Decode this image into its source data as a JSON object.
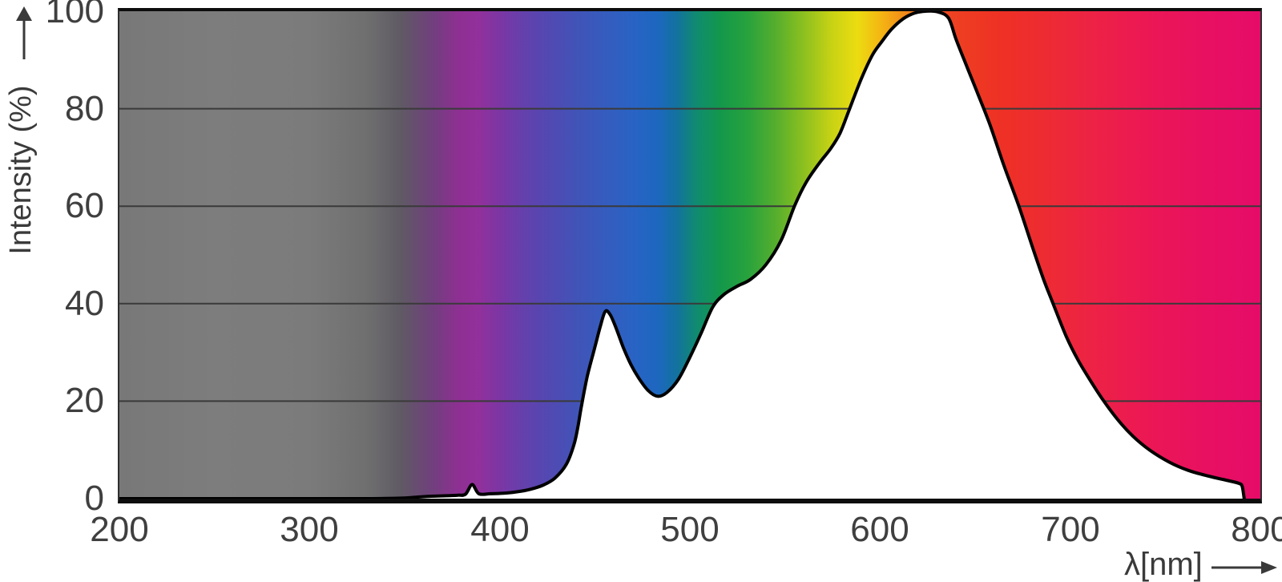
{
  "figure": {
    "description": "Spectral power distribution chart: relative intensity versus wavelength over a visible-light spectrum gradient; area below the curve is white"
  },
  "y_axis": {
    "title": "Intensity (%)",
    "ticks": [
      0,
      20,
      40,
      60,
      80,
      100
    ],
    "min": 0,
    "max": 100
  },
  "x_axis": {
    "title": "λ[nm]",
    "ticks": [
      200,
      300,
      400,
      500,
      600,
      700,
      800
    ],
    "min": 200,
    "max": 800
  },
  "styles": {
    "grid_color": "#3a3a3a",
    "curve_color": "#000000",
    "area_fill": "#ffffff",
    "label_color": "#3f3f3f",
    "axis_border_color": "#0d0d0d",
    "page_background": "#ffffff"
  },
  "spectrum_gradient": [
    {
      "nm": 200,
      "color": "#787878"
    },
    {
      "nm": 250,
      "color": "#7d7d7d"
    },
    {
      "nm": 300,
      "color": "#7b7b7b"
    },
    {
      "nm": 330,
      "color": "#6f6f6f"
    },
    {
      "nm": 348,
      "color": "#5f5a64"
    },
    {
      "nm": 365,
      "color": "#713f7e"
    },
    {
      "nm": 378,
      "color": "#8d3092"
    },
    {
      "nm": 388,
      "color": "#93309b"
    },
    {
      "nm": 400,
      "color": "#7c36a4"
    },
    {
      "nm": 412,
      "color": "#6540ac"
    },
    {
      "nm": 425,
      "color": "#5348b2"
    },
    {
      "nm": 440,
      "color": "#4253b7"
    },
    {
      "nm": 455,
      "color": "#355cbe"
    },
    {
      "nm": 470,
      "color": "#2963c4"
    },
    {
      "nm": 483,
      "color": "#1d67bf"
    },
    {
      "nm": 493,
      "color": "#13729f"
    },
    {
      "nm": 504,
      "color": "#108c6e"
    },
    {
      "nm": 516,
      "color": "#13984b"
    },
    {
      "nm": 530,
      "color": "#27a23d"
    },
    {
      "nm": 545,
      "color": "#55ae2e"
    },
    {
      "nm": 560,
      "color": "#8cc01f"
    },
    {
      "nm": 575,
      "color": "#c9d314"
    },
    {
      "nm": 588,
      "color": "#ebdc11"
    },
    {
      "nm": 600,
      "color": "#f4b713"
    },
    {
      "nm": 612,
      "color": "#f28d18"
    },
    {
      "nm": 624,
      "color": "#f0621e"
    },
    {
      "nm": 638,
      "color": "#ee4122"
    },
    {
      "nm": 662,
      "color": "#ee3124"
    },
    {
      "nm": 688,
      "color": "#ed2b33"
    },
    {
      "nm": 712,
      "color": "#ed2245"
    },
    {
      "nm": 742,
      "color": "#eb1755"
    },
    {
      "nm": 772,
      "color": "#e81061"
    },
    {
      "nm": 800,
      "color": "#e50c69"
    }
  ],
  "chart_data": {
    "type": "area",
    "title": "",
    "xlabel": "λ[nm]",
    "ylabel": "Intensity (%)",
    "xlim": [
      200,
      800
    ],
    "ylim": [
      0,
      100
    ],
    "grid": {
      "horizontal_lines_at": [
        20,
        40,
        60,
        80
      ],
      "visible_only_above_curve": true
    },
    "legend": "none",
    "series": [
      {
        "name": "relative spectral intensity",
        "points": [
          [
            200,
            0
          ],
          [
            245,
            0
          ],
          [
            290,
            0
          ],
          [
            330,
            0
          ],
          [
            348,
            0.1
          ],
          [
            356,
            0.3
          ],
          [
            364,
            0.5
          ],
          [
            372,
            0.6
          ],
          [
            378,
            0.7
          ],
          [
            382,
            0.9
          ],
          [
            385.5,
            2.9
          ],
          [
            389,
            1.0
          ],
          [
            395,
            1.0
          ],
          [
            402,
            1.1
          ],
          [
            409,
            1.4
          ],
          [
            416,
            1.9
          ],
          [
            423,
            2.8
          ],
          [
            429,
            4.2
          ],
          [
            435,
            7.0
          ],
          [
            439,
            11.0
          ],
          [
            441,
            14.5
          ],
          [
            443,
            19.0
          ],
          [
            446,
            25.0
          ],
          [
            450,
            31.0
          ],
          [
            453,
            35.5
          ],
          [
            455.5,
            38.4
          ],
          [
            458,
            37.8
          ],
          [
            461,
            35.2
          ],
          [
            465,
            31.0
          ],
          [
            469,
            27.5
          ],
          [
            473,
            24.8
          ],
          [
            478,
            22.2
          ],
          [
            483,
            21.0
          ],
          [
            488,
            21.8
          ],
          [
            494,
            24.5
          ],
          [
            500,
            29.0
          ],
          [
            506,
            34.0
          ],
          [
            512,
            39.3
          ],
          [
            518,
            41.9
          ],
          [
            525,
            43.6
          ],
          [
            532,
            45.0
          ],
          [
            540,
            48.0
          ],
          [
            548,
            53.0
          ],
          [
            555,
            60.0
          ],
          [
            561,
            64.8
          ],
          [
            568,
            68.8
          ],
          [
            574,
            71.8
          ],
          [
            579,
            75.0
          ],
          [
            584,
            80.0
          ],
          [
            590,
            86.0
          ],
          [
            596,
            91.0
          ],
          [
            601,
            93.8
          ],
          [
            606,
            96.3
          ],
          [
            612,
            98.4
          ],
          [
            618,
            99.6
          ],
          [
            624,
            100
          ],
          [
            630,
            99.9
          ],
          [
            636,
            98.6
          ],
          [
            640,
            94.2
          ],
          [
            646,
            88.3
          ],
          [
            652,
            82.5
          ],
          [
            658,
            76.5
          ],
          [
            665,
            68.5
          ],
          [
            673,
            60.0
          ],
          [
            680,
            51.8
          ],
          [
            686,
            45.0
          ],
          [
            691,
            40.0
          ],
          [
            698,
            33.2
          ],
          [
            704,
            28.5
          ],
          [
            710,
            24.6
          ],
          [
            717,
            20.4
          ],
          [
            725,
            16.2
          ],
          [
            733,
            12.8
          ],
          [
            742,
            9.9
          ],
          [
            752,
            7.5
          ],
          [
            762,
            5.8
          ],
          [
            773,
            4.6
          ],
          [
            783,
            3.7
          ],
          [
            789,
            3.1
          ],
          [
            790.5,
            2.4
          ],
          [
            791.5,
            0
          ]
        ],
        "notable_features": {
          "blue_peak": {
            "nm": 455,
            "intensity_pct": 38.5
          },
          "local_min": {
            "nm": 480,
            "intensity_pct": 21
          },
          "main_peak": {
            "nm": 625,
            "intensity_pct": 100
          },
          "curve_onset_nm": 360,
          "curve_end_nm": 791
        }
      }
    ]
  }
}
